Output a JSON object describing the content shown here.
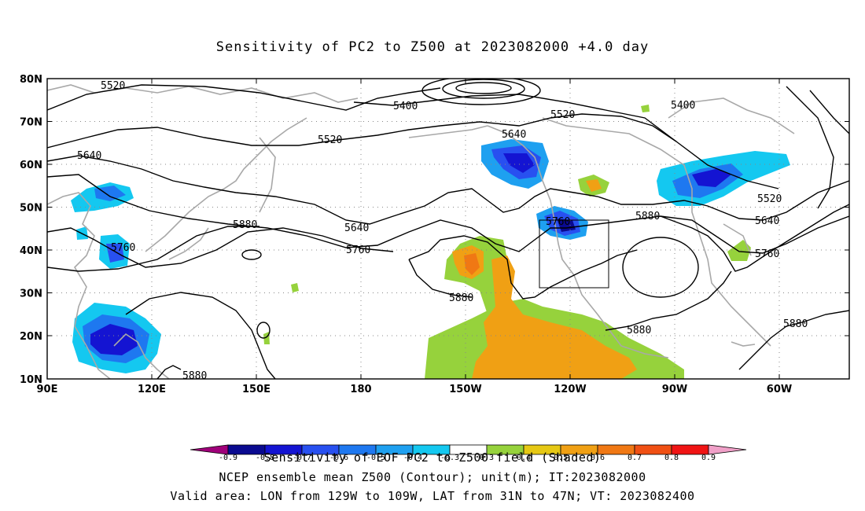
{
  "title": "Sensitivity of PC2 to Z500 at 2023082000 +4.0 day",
  "axes": {
    "lat_ticks": [
      "80N",
      "70N",
      "60N",
      "50N",
      "40N",
      "30N",
      "20N",
      "10N"
    ],
    "lon_ticks": [
      "90E",
      "120E",
      "150E",
      "180",
      "150W",
      "120W",
      "90W",
      "60W"
    ]
  },
  "contour_labels": [
    "5520",
    "5400",
    "5520",
    "5400",
    "5640",
    "5520",
    "5640",
    "5760",
    "5880",
    "5640",
    "5760",
    "5880",
    "5760",
    "5520",
    "5640",
    "5760",
    "5880",
    "5880",
    "5880",
    "5880"
  ],
  "colorbar": {
    "ticks": [
      "-0.9",
      "-0.8",
      "-0.7",
      "-0.6",
      "-0.5",
      "-0.4",
      "-0.3",
      "0.3",
      "0.4",
      "0.5",
      "0.6",
      "0.7",
      "0.8",
      "0.9"
    ],
    "colors": [
      "#a0007a",
      "#0a0a90",
      "#1414d2",
      "#2850f0",
      "#1e78f0",
      "#1ea0f0",
      "#14c8f0",
      "#ffffff",
      "#96d23c",
      "#e6c814",
      "#f0a014",
      "#f07814",
      "#f05014",
      "#f01414",
      "#f0a0c8"
    ]
  },
  "captions": [
    "Sensitivity of EOF PC2 to Z500 field (Shaded)",
    "NCEP ensemble mean Z500 (Contour); unit(m); IT:2023082000",
    "Valid area: LON from 129W to 109W, LAT from 31N to 47N; VT: 2023082400"
  ]
}
